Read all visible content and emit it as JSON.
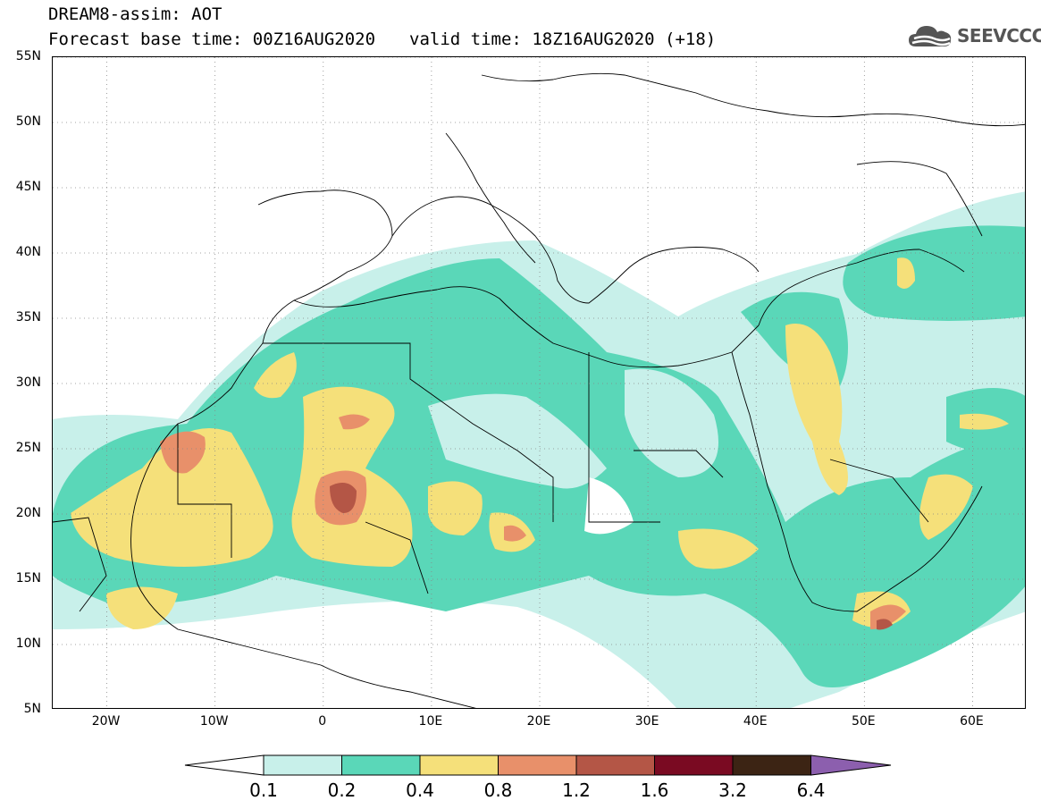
{
  "header": {
    "line1": "DREAM8-assim: AOT",
    "base_time": "Forecast base time: 00Z16AUG2020",
    "valid_time": "valid time: 18Z16AUG2020 (+18)"
  },
  "logo": {
    "text": "SEEVCCC",
    "icon": "cloud-icon"
  },
  "map": {
    "projection": "lat-lon",
    "lon_range": [
      -25,
      65
    ],
    "lat_range": [
      5,
      55
    ],
    "grid": "dotted",
    "lat_labels": [
      "55N",
      "50N",
      "45N",
      "40N",
      "35N",
      "30N",
      "25N",
      "20N",
      "15N",
      "10N",
      "5N"
    ],
    "lat_values": [
      55,
      50,
      45,
      40,
      35,
      30,
      25,
      20,
      15,
      10,
      5
    ],
    "lon_labels": [
      "20W",
      "10W",
      "0",
      "10E",
      "20E",
      "30E",
      "40E",
      "50E",
      "60E"
    ],
    "lon_values": [
      -20,
      -10,
      0,
      10,
      20,
      30,
      40,
      50,
      60
    ]
  },
  "colorbar": {
    "labels": [
      "0.1",
      "0.2",
      "0.4",
      "0.8",
      "1.2",
      "1.6",
      "3.2",
      "6.4"
    ],
    "colors": [
      "#c8f0ea",
      "#5ad7b8",
      "#f5e07a",
      "#e8906a",
      "#b45646",
      "#7a0a22",
      "#3c2414"
    ],
    "under_color": "#ffffff",
    "over_color": "#8c5fae"
  }
}
